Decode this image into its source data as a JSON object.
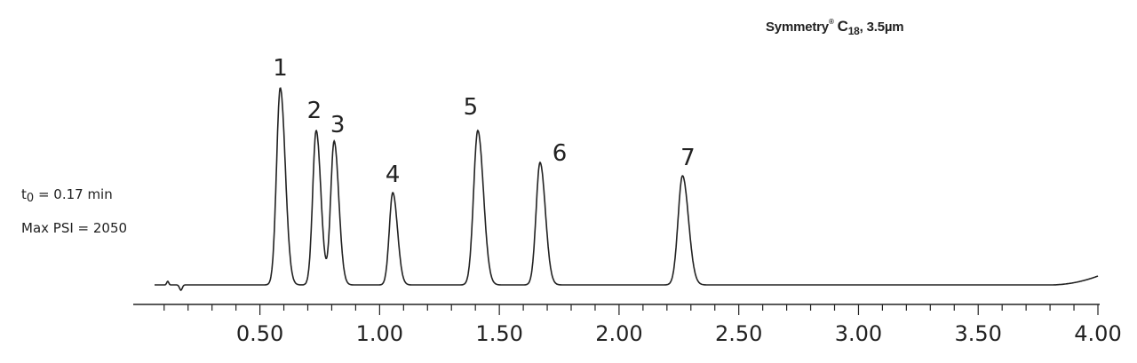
{
  "chart_data": {
    "type": "line",
    "title": {
      "prefix": "Symmetry",
      "registered": "®",
      "c": "C",
      "subscript": "18",
      "suffix": ", 3.5µm"
    },
    "annotations": {
      "t0": {
        "t": "t",
        "sub": "0",
        "rest": " = 0.17 min"
      },
      "max_psi": "Max PSI = 2050"
    },
    "x_ticks": [
      "0.50",
      "1.00",
      "1.50",
      "2.00",
      "2.50",
      "3.00",
      "3.50",
      "4.00"
    ],
    "xlim": [
      0.06,
      4.0
    ],
    "xlabel": "",
    "ylabel": "",
    "baseline": 0,
    "peaks": [
      {
        "label": "1",
        "x": 0.585,
        "height": 222,
        "sigma": 0.0155
      },
      {
        "label": "2",
        "x": 0.735,
        "height": 174,
        "sigma": 0.0145
      },
      {
        "label": "3",
        "x": 0.81,
        "height": 162,
        "sigma": 0.0145
      },
      {
        "label": "4",
        "x": 1.055,
        "height": 104,
        "sigma": 0.0145
      },
      {
        "label": "5",
        "x": 1.41,
        "height": 174,
        "sigma": 0.0175
      },
      {
        "label": "6",
        "x": 1.67,
        "height": 138,
        "sigma": 0.0165
      },
      {
        "label": "7",
        "x": 2.265,
        "height": 123,
        "sigma": 0.0185
      }
    ],
    "grid": false
  }
}
